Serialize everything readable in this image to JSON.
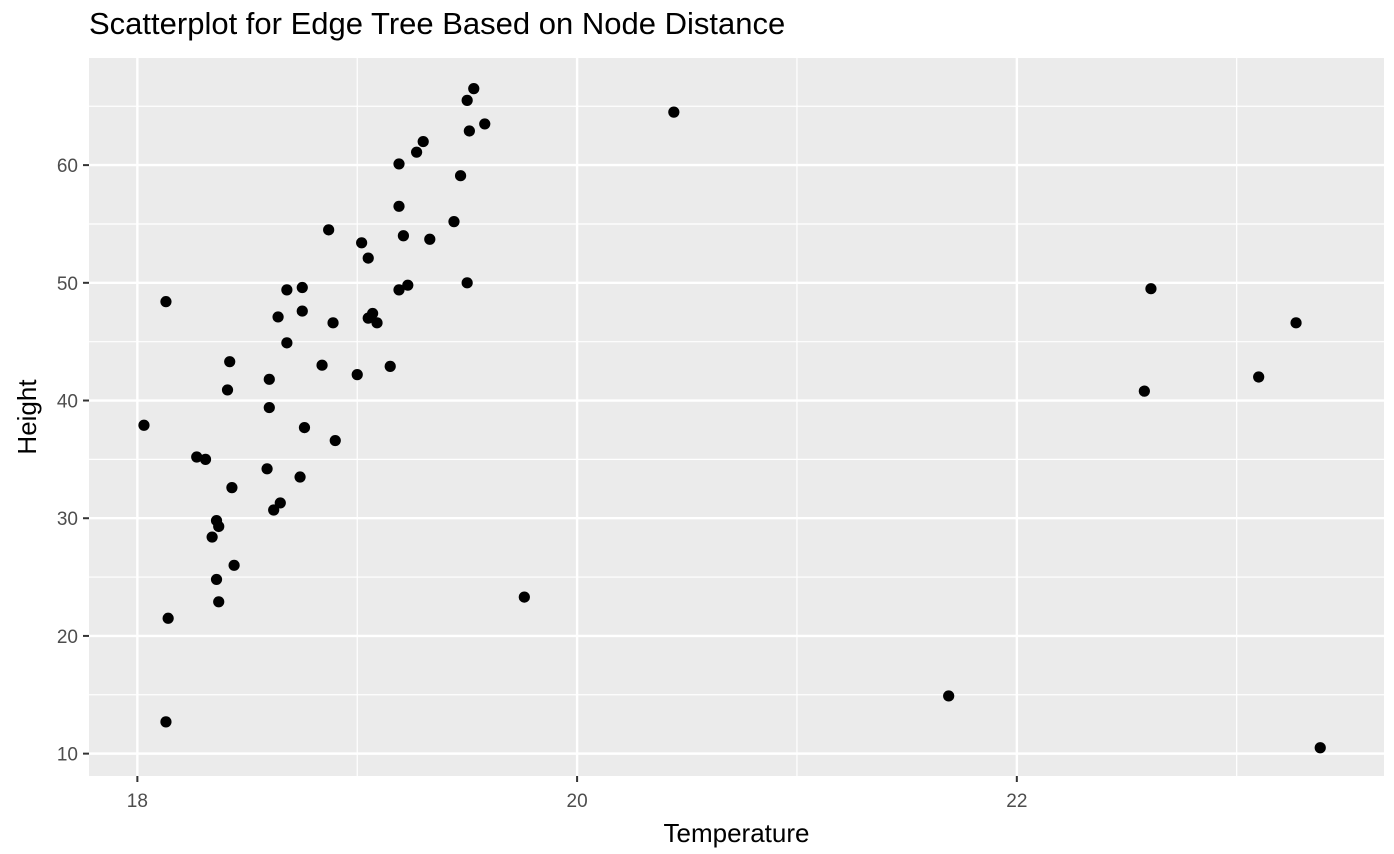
{
  "chart_data": {
    "type": "scatter",
    "title": "Scatterplot for Edge Tree Based on Node Distance",
    "xlabel": "Temperature",
    "ylabel": "Height",
    "xlim": [
      17.78,
      23.67
    ],
    "ylim": [
      8.1,
      69.1
    ],
    "x_major_ticks": [
      18,
      20,
      22
    ],
    "x_minor_ticks": [
      19,
      21,
      23
    ],
    "y_major_ticks": [
      10,
      20,
      30,
      40,
      50,
      60
    ],
    "y_minor_ticks": [
      15,
      25,
      35,
      45,
      55,
      65
    ],
    "grid": true,
    "colors": {
      "panel": "#ebebeb",
      "grid": "#ffffff",
      "point": "#000000",
      "tick_text": "#4d4d4d",
      "tick_mark": "#333333"
    },
    "points": [
      {
        "x": 18.03,
        "y": 37.9
      },
      {
        "x": 18.13,
        "y": 48.4
      },
      {
        "x": 18.14,
        "y": 21.5
      },
      {
        "x": 18.13,
        "y": 12.7
      },
      {
        "x": 18.27,
        "y": 35.2
      },
      {
        "x": 18.31,
        "y": 35.0
      },
      {
        "x": 18.34,
        "y": 28.4
      },
      {
        "x": 18.36,
        "y": 29.8
      },
      {
        "x": 18.37,
        "y": 29.3
      },
      {
        "x": 18.36,
        "y": 24.8
      },
      {
        "x": 18.37,
        "y": 22.9
      },
      {
        "x": 18.41,
        "y": 40.9
      },
      {
        "x": 18.42,
        "y": 43.3
      },
      {
        "x": 18.43,
        "y": 32.6
      },
      {
        "x": 18.44,
        "y": 26.0
      },
      {
        "x": 18.59,
        "y": 34.2
      },
      {
        "x": 18.6,
        "y": 41.8
      },
      {
        "x": 18.6,
        "y": 39.4
      },
      {
        "x": 18.62,
        "y": 30.7
      },
      {
        "x": 18.64,
        "y": 47.1
      },
      {
        "x": 18.65,
        "y": 31.3
      },
      {
        "x": 18.68,
        "y": 49.4
      },
      {
        "x": 18.68,
        "y": 44.9
      },
      {
        "x": 18.75,
        "y": 49.6
      },
      {
        "x": 18.75,
        "y": 47.6
      },
      {
        "x": 18.74,
        "y": 33.5
      },
      {
        "x": 18.76,
        "y": 37.7
      },
      {
        "x": 18.84,
        "y": 43.0
      },
      {
        "x": 18.87,
        "y": 54.5
      },
      {
        "x": 18.89,
        "y": 46.6
      },
      {
        "x": 18.9,
        "y": 36.6
      },
      {
        "x": 19.0,
        "y": 42.2
      },
      {
        "x": 19.02,
        "y": 53.4
      },
      {
        "x": 19.05,
        "y": 52.1
      },
      {
        "x": 19.05,
        "y": 47.0
      },
      {
        "x": 19.07,
        "y": 47.4
      },
      {
        "x": 19.09,
        "y": 46.6
      },
      {
        "x": 19.15,
        "y": 42.9
      },
      {
        "x": 19.19,
        "y": 60.1
      },
      {
        "x": 19.19,
        "y": 56.5
      },
      {
        "x": 19.19,
        "y": 49.4
      },
      {
        "x": 19.21,
        "y": 54.0
      },
      {
        "x": 19.23,
        "y": 49.8
      },
      {
        "x": 19.27,
        "y": 61.1
      },
      {
        "x": 19.3,
        "y": 62.0
      },
      {
        "x": 19.33,
        "y": 53.7
      },
      {
        "x": 19.44,
        "y": 55.2
      },
      {
        "x": 19.47,
        "y": 59.1
      },
      {
        "x": 19.5,
        "y": 65.5
      },
      {
        "x": 19.5,
        "y": 50.0
      },
      {
        "x": 19.51,
        "y": 62.9
      },
      {
        "x": 19.53,
        "y": 66.5
      },
      {
        "x": 19.58,
        "y": 63.5
      },
      {
        "x": 19.76,
        "y": 23.3
      },
      {
        "x": 20.44,
        "y": 64.5
      },
      {
        "x": 21.69,
        "y": 14.9
      },
      {
        "x": 22.58,
        "y": 40.8
      },
      {
        "x": 22.61,
        "y": 49.5
      },
      {
        "x": 23.1,
        "y": 42.0
      },
      {
        "x": 23.27,
        "y": 46.6
      },
      {
        "x": 23.38,
        "y": 10.5
      }
    ]
  }
}
